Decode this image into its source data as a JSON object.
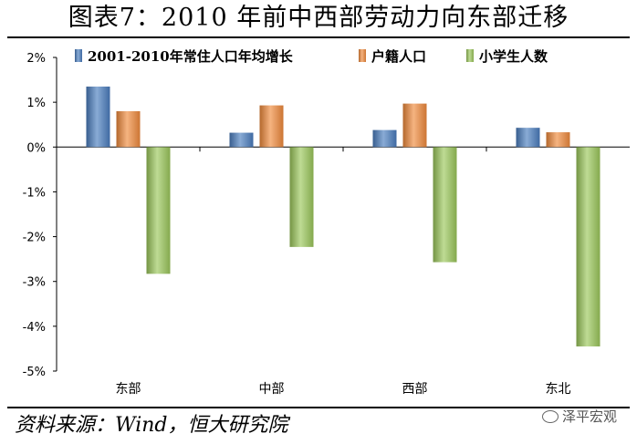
{
  "title": "图表7：2010 年前中西部劳动力向东部迁移",
  "source": "资料来源：Wind，恒大研究院",
  "watermark": "泽平宏观",
  "chart_data": {
    "type": "bar",
    "categories": [
      "东部",
      "中部",
      "西部",
      "东北"
    ],
    "series": [
      {
        "name": "2001-2010年常住人口年均增长",
        "color": "#4a7dbe",
        "values": [
          1.35,
          0.32,
          0.38,
          0.43
        ]
      },
      {
        "name": "户籍人口",
        "color": "#f08a3c",
        "values": [
          0.8,
          0.93,
          0.97,
          0.33
        ]
      },
      {
        "name": "小学生人数",
        "color": "#9bc75a",
        "values": [
          -2.83,
          -2.23,
          -2.57,
          -4.45
        ]
      }
    ],
    "yticks": [
      "2%",
      "1%",
      "0%",
      "-1%",
      "-2%",
      "-3%",
      "-4%",
      "-5%"
    ],
    "ylim": [
      -5,
      2
    ],
    "unit": "%",
    "legend_position": "top",
    "grid": false
  }
}
